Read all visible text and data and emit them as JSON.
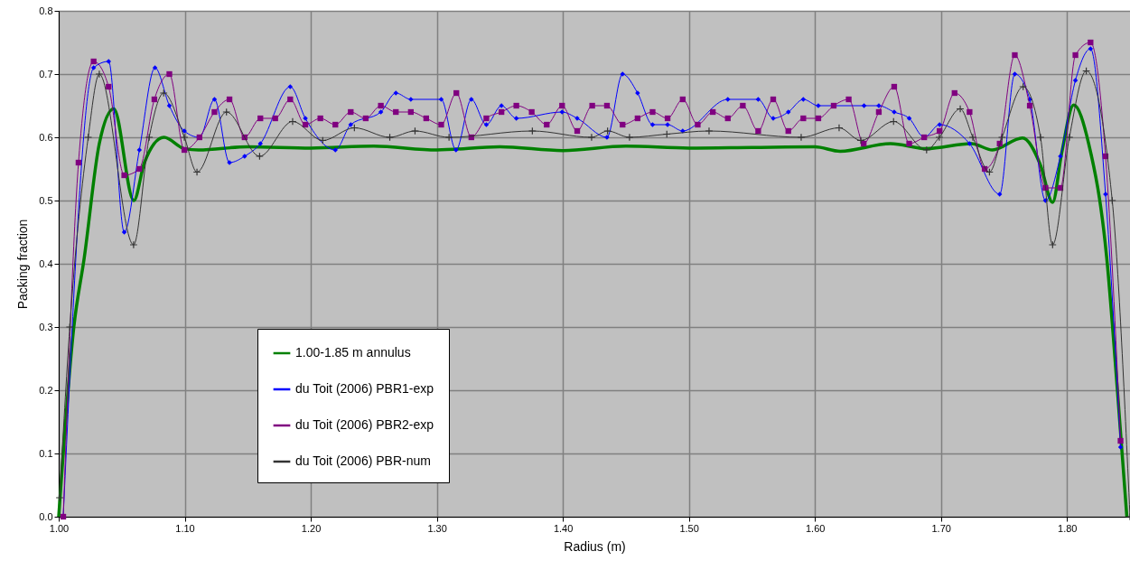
{
  "chart_data": {
    "type": "line",
    "xlabel": "Radius (m)",
    "ylabel": "Packing fraction",
    "xlim": [
      1.0,
      1.85
    ],
    "ylim": [
      0.0,
      0.8
    ],
    "xticks": [
      {
        "value": 1.0,
        "label": "1.00"
      },
      {
        "value": 1.1,
        "label": "1.10"
      },
      {
        "value": 1.2,
        "label": "1.20"
      },
      {
        "value": 1.3,
        "label": "1.30"
      },
      {
        "value": 1.4,
        "label": "1.40"
      },
      {
        "value": 1.5,
        "label": "1.50"
      },
      {
        "value": 1.6,
        "label": "1.60"
      },
      {
        "value": 1.7,
        "label": "1.70"
      },
      {
        "value": 1.8,
        "label": "1.80"
      }
    ],
    "yticks": [
      {
        "value": 0.0,
        "label": "0.0"
      },
      0.1,
      0.2,
      0.3,
      0.4,
      0.5,
      0.6,
      0.7,
      0.8
    ],
    "grid": true,
    "legend": "bottom left",
    "series": [
      {
        "name": "1.00-1.85 m annulus",
        "color": "#008000",
        "marker": "none",
        "x": [
          1.0,
          1.012,
          1.0203,
          1.0322,
          1.0437,
          1.0596,
          1.068,
          1.0835,
          1.0997,
          1.111,
          1.15,
          1.2,
          1.25,
          1.3,
          1.35,
          1.4,
          1.45,
          1.5,
          1.55,
          1.6,
          1.62,
          1.66,
          1.6884,
          1.7242,
          1.7409,
          1.7647,
          1.779,
          1.7886,
          1.7958,
          1.8053,
          1.8172,
          1.8315,
          1.84,
          1.8475
        ],
        "values": [
          0.0,
          0.3,
          0.41,
          0.59,
          0.645,
          0.5,
          0.56,
          0.6,
          0.582,
          0.58,
          0.585,
          0.583,
          0.586,
          0.58,
          0.585,
          0.579,
          0.586,
          0.583,
          0.584,
          0.585,
          0.578,
          0.59,
          0.582,
          0.59,
          0.58,
          0.599,
          0.556,
          0.497,
          0.575,
          0.651,
          0.59,
          0.41,
          0.2,
          0.0
        ]
      },
      {
        "name": "du Toit (2006) PBR1-exp",
        "color": "#0000ff",
        "marker": "diamond",
        "x": [
          1.0036,
          1.0277,
          1.0396,
          1.052,
          1.064,
          1.0764,
          1.0878,
          1.0997,
          1.1117,
          1.1236,
          1.1355,
          1.1475,
          1.16,
          1.1837,
          1.1957,
          1.2195,
          1.2317,
          1.2556,
          1.2675,
          1.2794,
          1.3035,
          1.3152,
          1.3274,
          1.3393,
          1.3513,
          1.3631,
          1.3994,
          1.4114,
          1.435,
          1.4474,
          1.4593,
          1.4712,
          1.4831,
          1.4951,
          1.5309,
          1.555,
          1.5669,
          1.5789,
          1.5908,
          1.6027,
          1.639,
          1.6507,
          1.6629,
          1.6748,
          1.6867,
          1.6989,
          1.7227,
          1.7466,
          1.7586,
          1.7705,
          1.7829,
          1.7948,
          1.8067,
          1.8187,
          1.8306,
          1.8425
        ],
        "values": [
          0.0,
          0.71,
          0.72,
          0.45,
          0.58,
          0.71,
          0.65,
          0.61,
          0.6,
          0.66,
          0.56,
          0.57,
          0.59,
          0.68,
          0.63,
          0.58,
          0.62,
          0.64,
          0.67,
          0.66,
          0.66,
          0.58,
          0.66,
          0.62,
          0.65,
          0.63,
          0.64,
          0.63,
          0.6,
          0.7,
          0.67,
          0.62,
          0.62,
          0.61,
          0.66,
          0.66,
          0.63,
          0.64,
          0.66,
          0.65,
          0.65,
          0.65,
          0.64,
          0.63,
          0.6,
          0.62,
          0.59,
          0.51,
          0.7,
          0.66,
          0.5,
          0.57,
          0.69,
          0.74,
          0.51,
          0.11
        ]
      },
      {
        "name": "du Toit (2006) PBR2-exp",
        "color": "#800080",
        "marker": "square",
        "x": [
          1.0036,
          1.0157,
          1.0277,
          1.0396,
          1.052,
          1.064,
          1.0759,
          1.0878,
          1.0997,
          1.1117,
          1.1236,
          1.1355,
          1.1475,
          1.16,
          1.1718,
          1.1837,
          1.1957,
          1.2076,
          1.2195,
          1.2317,
          1.2436,
          1.2556,
          1.2675,
          1.2794,
          1.2916,
          1.3035,
          1.3155,
          1.3274,
          1.3393,
          1.3513,
          1.3631,
          1.3753,
          1.3872,
          1.3994,
          1.4114,
          1.4233,
          1.435,
          1.4474,
          1.4593,
          1.4712,
          1.4831,
          1.4951,
          1.507,
          1.519,
          1.5309,
          1.5428,
          1.555,
          1.5669,
          1.5789,
          1.5908,
          1.6027,
          1.6149,
          1.6268,
          1.6387,
          1.6507,
          1.6629,
          1.6748,
          1.6867,
          1.6989,
          1.7108,
          1.7227,
          1.7347,
          1.7466,
          1.7586,
          1.7705,
          1.7829,
          1.7948,
          1.8067,
          1.8187,
          1.8306,
          1.8425
        ],
        "values": [
          0.0,
          0.56,
          0.72,
          0.68,
          0.54,
          0.55,
          0.66,
          0.7,
          0.58,
          0.6,
          0.64,
          0.66,
          0.6,
          0.63,
          0.63,
          0.66,
          0.62,
          0.63,
          0.62,
          0.64,
          0.63,
          0.65,
          0.64,
          0.64,
          0.63,
          0.62,
          0.67,
          0.6,
          0.63,
          0.64,
          0.65,
          0.64,
          0.62,
          0.65,
          0.61,
          0.65,
          0.65,
          0.62,
          0.63,
          0.64,
          0.63,
          0.66,
          0.62,
          0.64,
          0.63,
          0.65,
          0.61,
          0.66,
          0.61,
          0.63,
          0.63,
          0.65,
          0.66,
          0.59,
          0.64,
          0.68,
          0.59,
          0.6,
          0.61,
          0.67,
          0.64,
          0.55,
          0.59,
          0.73,
          0.65,
          0.52,
          0.52,
          0.73,
          0.75,
          0.57,
          0.12
        ]
      },
      {
        "name": "du Toit (2006) PBR-num",
        "color": "#333333",
        "marker": "cross",
        "x": [
          1.0007,
          1.0088,
          1.0234,
          1.0322,
          1.0594,
          1.0718,
          1.0833,
          1.0997,
          1.1097,
          1.1331,
          1.1594,
          1.1856,
          1.2095,
          1.2346,
          1.2627,
          1.2827,
          1.3097,
          1.3758,
          1.4228,
          1.4355,
          1.4529,
          1.4825,
          1.516,
          1.5891,
          1.6192,
          1.6364,
          1.6624,
          1.6886,
          1.6987,
          1.7153,
          1.7253,
          1.7385,
          1.7485,
          1.7652,
          1.779,
          1.7886,
          1.8019,
          1.8153,
          1.8359,
          1.85
        ],
        "values": [
          0.03,
          0.3,
          0.6,
          0.7,
          0.43,
          0.6,
          0.67,
          0.6,
          0.545,
          0.64,
          0.57,
          0.625,
          0.595,
          0.615,
          0.6,
          0.61,
          0.6,
          0.61,
          0.6,
          0.61,
          0.6,
          0.605,
          0.61,
          0.6,
          0.615,
          0.595,
          0.625,
          0.58,
          0.6,
          0.645,
          0.6,
          0.545,
          0.6,
          0.68,
          0.6,
          0.43,
          0.6,
          0.705,
          0.5,
          0.0
        ]
      }
    ]
  }
}
